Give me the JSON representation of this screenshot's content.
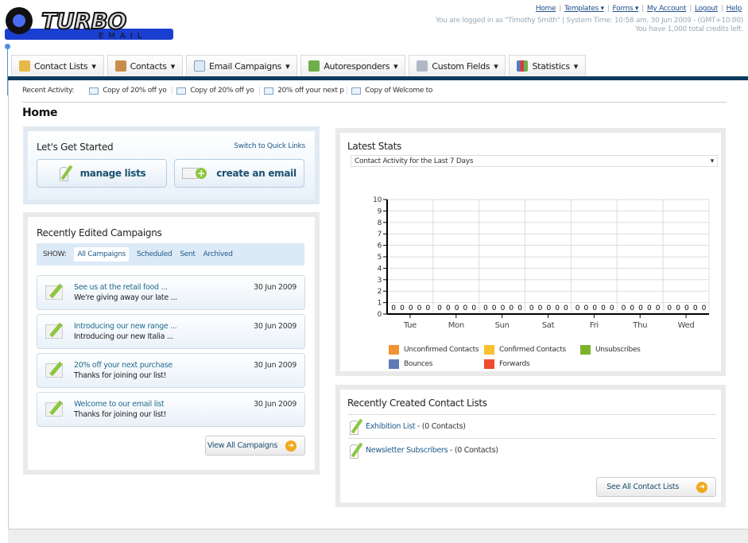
{
  "brand": {
    "logo_text": "TURBO",
    "logo_sub": "EMAIL"
  },
  "toplinks": [
    "Home",
    "Templates ▾",
    "Forms ▾",
    "My Account",
    "Logout",
    "Help"
  ],
  "info": {
    "login": "You are logged in as \"Timothy Smith\" | System Time: 10:58 am, 30 Jun 2009 - (GMT+10:00)",
    "credits": "You have 1,000 total credits left."
  },
  "tabs": [
    {
      "label": "Contact Lists",
      "icon": "contact-lists-icon",
      "color": "#e8b84a"
    },
    {
      "label": "Contacts",
      "icon": "contacts-icon",
      "color": "#c98d4a"
    },
    {
      "label": "Email Campaigns",
      "icon": "envelope-icon",
      "color": "#7fa2c8"
    },
    {
      "label": "Autoresponders",
      "icon": "autoresponder-icon",
      "color": "#6fae4a"
    },
    {
      "label": "Custom Fields",
      "icon": "custom-fields-icon",
      "color": "#b0b8c8"
    },
    {
      "label": "Statistics",
      "icon": "statistics-icon",
      "color": "#5a78c0"
    }
  ],
  "recent": {
    "label": "Recent Activity:",
    "items": [
      "Copy of 20% off yo",
      "Copy of 20% off yo",
      "20% off your next p",
      "Copy of Welcome to"
    ]
  },
  "page_title": "Home",
  "started": {
    "title": "Let's Get Started",
    "switch": "Switch to Quick Links",
    "manage": "manage lists",
    "create": "create an email"
  },
  "campaigns": {
    "title": "Recently Edited Campaigns",
    "show": "SHOW:",
    "filters": [
      "All Campaigns",
      "Scheduled",
      "Sent",
      "Archived"
    ],
    "items": [
      {
        "name": "See us at the retail food ...",
        "desc": "We're giving away our late ...",
        "date": "30 Jun 2009"
      },
      {
        "name": "Introducing our new range ...",
        "desc": "Introducing our new Italia ...",
        "date": "30 Jun 2009"
      },
      {
        "name": "20% off your next purchase",
        "desc": "Thanks for joining our list!",
        "date": "30 Jun 2009"
      },
      {
        "name": "Welcome to our email list",
        "desc": "Thanks for joining our list!",
        "date": "30 Jun 2009"
      }
    ],
    "view_all": "View All Campaigns"
  },
  "stats": {
    "title": "Latest Stats",
    "select": "Contact Activity for the Last 7 Days"
  },
  "chart_data": {
    "type": "bar",
    "categories": [
      "Tue",
      "Mon",
      "Sun",
      "Sat",
      "Fri",
      "Thu",
      "Wed"
    ],
    "ylim": [
      0,
      10
    ],
    "yticks": [
      0,
      1,
      2,
      3,
      4,
      5,
      6,
      7,
      8,
      9,
      10
    ],
    "grid": true,
    "legend": "bottom",
    "series": [
      {
        "name": "Unconfirmed Contacts",
        "color": "#f39233",
        "values": [
          0,
          0,
          0,
          0,
          0,
          0,
          0
        ]
      },
      {
        "name": "Confirmed Contacts",
        "color": "#fbc02d",
        "values": [
          0,
          0,
          0,
          0,
          0,
          0,
          0
        ]
      },
      {
        "name": "Unsubscribes",
        "color": "#7cb32a",
        "values": [
          0,
          0,
          0,
          0,
          0,
          0,
          0
        ]
      },
      {
        "name": "Bounces",
        "color": "#5f7bb5",
        "values": [
          0,
          0,
          0,
          0,
          0,
          0,
          0
        ]
      },
      {
        "name": "Forwards",
        "color": "#ee4d2d",
        "values": [
          0,
          0,
          0,
          0,
          0,
          0,
          0
        ]
      }
    ]
  },
  "lists": {
    "title": "Recently Created Contact Lists",
    "items": [
      {
        "name": "Exhibition List",
        "count": " - (0 Contacts)"
      },
      {
        "name": "Newsletter Subscribers",
        "count": " - (0 Contacts)"
      }
    ],
    "see_all": "See All Contact Lists"
  }
}
